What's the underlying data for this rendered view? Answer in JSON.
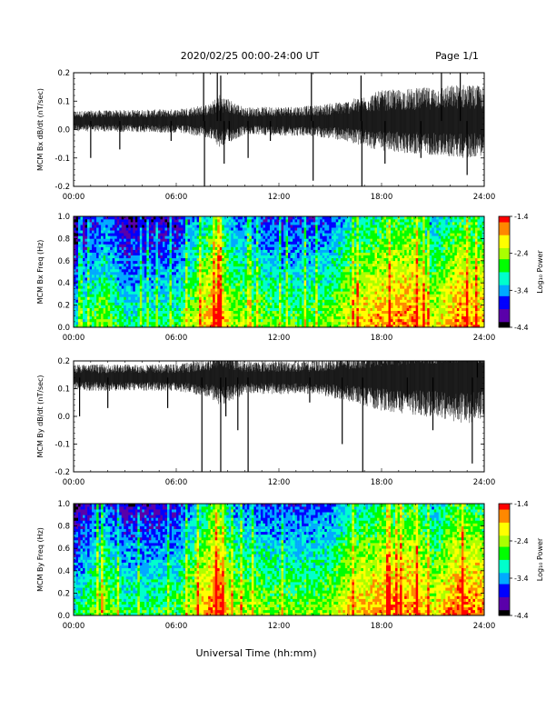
{
  "header": {
    "date_range": "2020/02/25  00:00-24:00 UT",
    "page": "Page 1/1"
  },
  "footer": {
    "xlabel": "Universal Time (hh:mm)"
  },
  "chart_data": [
    {
      "type": "line",
      "ylabel": "MCM Bx dB/dt (nT/sec)",
      "x_ticks": [
        "00:00",
        "06:00",
        "12:00",
        "18:00",
        "24:00"
      ],
      "xlim_hours": [
        0,
        24
      ],
      "ylim": [
        -0.2,
        0.2
      ],
      "y_ticks": [
        "-0.2",
        "-0.1",
        "0.0",
        "0.1",
        "0.2"
      ],
      "y_tick_values": [
        -0.2,
        -0.1,
        0.0,
        0.1,
        0.2
      ],
      "baseline": 0.03,
      "noise_envelope": [
        {
          "x": 0,
          "a": 0.03
        },
        {
          "x": 6,
          "a": 0.035
        },
        {
          "x": 8,
          "a": 0.05
        },
        {
          "x": 8.5,
          "a": 0.08
        },
        {
          "x": 10,
          "a": 0.04
        },
        {
          "x": 14,
          "a": 0.045
        },
        {
          "x": 16,
          "a": 0.06
        },
        {
          "x": 18,
          "a": 0.09
        },
        {
          "x": 21,
          "a": 0.1
        },
        {
          "x": 23,
          "a": 0.11
        },
        {
          "x": 24,
          "a": 0.1
        }
      ],
      "spikes": [
        {
          "x": 1.0,
          "v": -0.1
        },
        {
          "x": 2.7,
          "v": -0.07
        },
        {
          "x": 5.7,
          "v": -0.04
        },
        {
          "x": 7.6,
          "v": 0.2
        },
        {
          "x": 7.65,
          "v": -0.2
        },
        {
          "x": 8.4,
          "v": 0.2
        },
        {
          "x": 8.6,
          "v": 0.19
        },
        {
          "x": 8.8,
          "v": -0.12
        },
        {
          "x": 9.1,
          "v": -0.04
        },
        {
          "x": 10.2,
          "v": -0.1
        },
        {
          "x": 11.5,
          "v": -0.04
        },
        {
          "x": 13.9,
          "v": 0.2
        },
        {
          "x": 14.0,
          "v": -0.18
        },
        {
          "x": 16.8,
          "v": 0.19
        },
        {
          "x": 16.85,
          "v": -0.2
        },
        {
          "x": 18.2,
          "v": -0.12
        },
        {
          "x": 20.3,
          "v": -0.1
        },
        {
          "x": 21.5,
          "v": 0.2
        },
        {
          "x": 22.6,
          "v": 0.2
        },
        {
          "x": 23.0,
          "v": -0.16
        }
      ]
    },
    {
      "type": "heatmap",
      "ylabel": "MCM Bx Freq (Hz)",
      "x_ticks": [
        "00:00",
        "06:00",
        "12:00",
        "18:00",
        "24:00"
      ],
      "xlim_hours": [
        0,
        24
      ],
      "ylim": [
        0,
        1.0
      ],
      "y_ticks": [
        "0.0",
        "0.2",
        "0.4",
        "0.6",
        "0.8",
        "1.0"
      ],
      "y_tick_values": [
        0,
        0.2,
        0.4,
        0.6,
        0.8,
        1.0
      ],
      "colorbar": {
        "label": "Log₁₀ Power",
        "ticks": [
          "-1.4",
          "-2.4",
          "-3.4",
          "-4.4"
        ],
        "tick_values": [
          -1.4,
          -2.4,
          -3.4,
          -4.4
        ],
        "range": [
          -4.4,
          -1.4
        ],
        "colors": [
          "#000000",
          "#5a00aa",
          "#0000ff",
          "#00aaff",
          "#00ffcc",
          "#00ff00",
          "#aaff00",
          "#ffff00",
          "#ff8800",
          "#ff0000"
        ]
      },
      "activity_profile_hours": [
        {
          "x": 0,
          "v": -3.4
        },
        {
          "x": 1.8,
          "v": -2.7
        },
        {
          "x": 3,
          "v": -3.2
        },
        {
          "x": 6,
          "v": -3.1
        },
        {
          "x": 8.5,
          "v": -1.8
        },
        {
          "x": 9.2,
          "v": -2.6
        },
        {
          "x": 12,
          "v": -2.9
        },
        {
          "x": 15,
          "v": -2.8
        },
        {
          "x": 16,
          "v": -2.4
        },
        {
          "x": 18,
          "v": -2.0
        },
        {
          "x": 20,
          "v": -1.9
        },
        {
          "x": 21,
          "v": -2.5
        },
        {
          "x": 22.5,
          "v": -1.9
        },
        {
          "x": 24,
          "v": -2.1
        }
      ]
    },
    {
      "type": "line",
      "ylabel": "MCM By dB/dt (nT/sec)",
      "x_ticks": [
        "00:00",
        "06:00",
        "12:00",
        "18:00",
        "24:00"
      ],
      "xlim_hours": [
        0,
        24
      ],
      "ylim": [
        -0.2,
        0.2
      ],
      "y_ticks": [
        "-0.2",
        "-0.1",
        "0.0",
        "0.1",
        "0.2"
      ],
      "y_tick_values": [
        -0.2,
        -0.1,
        0.0,
        0.1,
        0.2
      ],
      "baseline": 0.14,
      "noise_envelope": [
        {
          "x": 0,
          "a": 0.04
        },
        {
          "x": 6,
          "a": 0.04
        },
        {
          "x": 8,
          "a": 0.06
        },
        {
          "x": 8.5,
          "a": 0.09
        },
        {
          "x": 10,
          "a": 0.05
        },
        {
          "x": 14,
          "a": 0.05
        },
        {
          "x": 16,
          "a": 0.07
        },
        {
          "x": 18,
          "a": 0.1
        },
        {
          "x": 21,
          "a": 0.12
        },
        {
          "x": 23,
          "a": 0.14
        },
        {
          "x": 24,
          "a": 0.12
        }
      ],
      "spikes": [
        {
          "x": 0.35,
          "v": 0.0
        },
        {
          "x": 2.0,
          "v": 0.03
        },
        {
          "x": 5.5,
          "v": 0.03
        },
        {
          "x": 7.5,
          "v": -0.2
        },
        {
          "x": 8.6,
          "v": -0.2
        },
        {
          "x": 8.9,
          "v": 0.0
        },
        {
          "x": 9.6,
          "v": -0.05
        },
        {
          "x": 10.2,
          "v": -0.2
        },
        {
          "x": 13.8,
          "v": 0.05
        },
        {
          "x": 15.7,
          "v": -0.1
        },
        {
          "x": 16.9,
          "v": -0.2
        },
        {
          "x": 19.5,
          "v": 0.05
        },
        {
          "x": 21.0,
          "v": -0.05
        },
        {
          "x": 23.3,
          "v": -0.17
        },
        {
          "x": 23.6,
          "v": 0.2
        }
      ]
    },
    {
      "type": "heatmap",
      "ylabel": "MCM By Freq (Hz)",
      "x_ticks": [
        "00:00",
        "06:00",
        "12:00",
        "18:00",
        "24:00"
      ],
      "xlim_hours": [
        0,
        24
      ],
      "ylim": [
        0,
        1.0
      ],
      "y_ticks": [
        "0.0",
        "0.2",
        "0.4",
        "0.6",
        "0.8",
        "1.0"
      ],
      "y_tick_values": [
        0,
        0.2,
        0.4,
        0.6,
        0.8,
        1.0
      ],
      "colorbar": {
        "label": "Log₁₀ Power",
        "ticks": [
          "-1.4",
          "-2.4",
          "-3.4",
          "-4.4"
        ],
        "tick_values": [
          -1.4,
          -2.4,
          -3.4,
          -4.4
        ],
        "range": [
          -4.4,
          -1.4
        ],
        "colors": [
          "#000000",
          "#5a00aa",
          "#0000ff",
          "#00aaff",
          "#00ffcc",
          "#00ff00",
          "#aaff00",
          "#ffff00",
          "#ff8800",
          "#ff0000"
        ]
      },
      "activity_profile_hours": [
        {
          "x": 0,
          "v": -3.3
        },
        {
          "x": 1.8,
          "v": -2.6
        },
        {
          "x": 3,
          "v": -3.1
        },
        {
          "x": 6,
          "v": -3.0
        },
        {
          "x": 8.5,
          "v": -1.7
        },
        {
          "x": 9.2,
          "v": -2.5
        },
        {
          "x": 12,
          "v": -2.8
        },
        {
          "x": 15,
          "v": -2.7
        },
        {
          "x": 16,
          "v": -2.3
        },
        {
          "x": 18,
          "v": -2.0
        },
        {
          "x": 20,
          "v": -1.9
        },
        {
          "x": 21,
          "v": -2.4
        },
        {
          "x": 22.5,
          "v": -1.8
        },
        {
          "x": 24,
          "v": -2.0
        }
      ]
    }
  ]
}
